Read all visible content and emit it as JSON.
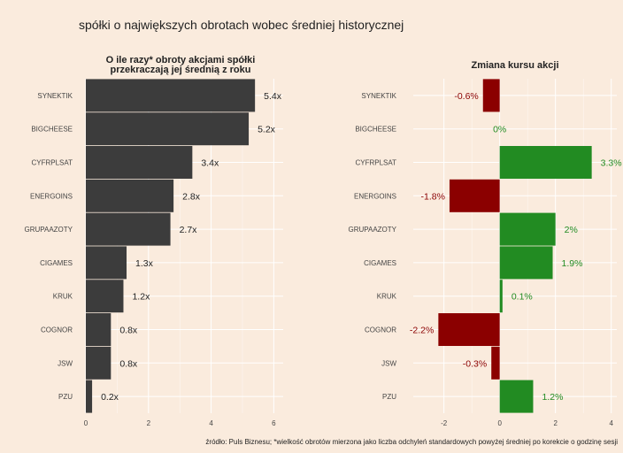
{
  "title": "spółki o największych obrotach wobec średniej historycznej",
  "source": "źródło: Puls Biznesu; *wielkość obrotów mierzona jako liczba odchyleń standardowych powyżej średniej po korekcie o godzinę sesji",
  "colors": {
    "background": "#faebdd",
    "bar_left": "#3c3c3c",
    "positive": "#228b22",
    "negative": "#8b0000",
    "grid": "#ffffff"
  },
  "chart_data": [
    {
      "type": "bar",
      "orientation": "horizontal",
      "title": "O ile razy* obroty akcjami spółki\nprzekraczają jej średnią z roku",
      "categories": [
        "SYNEKTIK",
        "BIGCHEESE",
        "CYFRPLSAT",
        "ENERGOINS",
        "GRUPAAZOTY",
        "CIGAMES",
        "KRUK",
        "COGNOR",
        "JSW",
        "PZU"
      ],
      "values": [
        5.4,
        5.2,
        3.4,
        2.8,
        2.7,
        1.3,
        1.2,
        0.8,
        0.8,
        0.2
      ],
      "labels": [
        "5.4x",
        "5.2x",
        "3.4x",
        "2.8x",
        "2.7x",
        "1.3x",
        "1.2x",
        "0.8x",
        "0.8x",
        "0.2x"
      ],
      "xticks": [
        0,
        2,
        4,
        6
      ],
      "xlim": [
        0,
        6.3
      ]
    },
    {
      "type": "bar",
      "orientation": "horizontal",
      "title": "Zmiana kursu akcji",
      "categories": [
        "SYNEKTIK",
        "BIGCHEESE",
        "CYFRPLSAT",
        "ENERGOINS",
        "GRUPAAZOTY",
        "CIGAMES",
        "KRUK",
        "COGNOR",
        "JSW",
        "PZU"
      ],
      "values": [
        -0.6,
        0,
        3.3,
        -1.8,
        2,
        1.9,
        0.1,
        -2.2,
        -0.3,
        1.2
      ],
      "labels": [
        "-0.6%",
        "0%",
        "3.3%",
        "-1.8%",
        "2%",
        "1.9%",
        "0.1%",
        "-2.2%",
        "-0.3%",
        "1.2%"
      ],
      "xticks": [
        -2,
        0,
        2,
        4
      ],
      "xlim": [
        -3.1,
        4.2
      ]
    }
  ]
}
